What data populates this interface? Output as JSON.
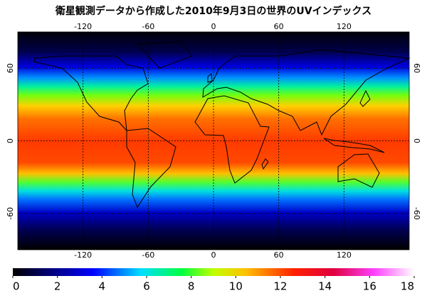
{
  "title": "衛星観測データから作成した2010年9月3日の世界のUVインデックス",
  "map": {
    "lonlim": [
      -180,
      180
    ],
    "latlim": [
      -90,
      90
    ],
    "lon_ticks": [
      -120,
      -60,
      0,
      60,
      120
    ],
    "lat_ticks": [
      60,
      0,
      -60
    ],
    "grid": true
  },
  "colorbar": {
    "lim": [
      0,
      18
    ],
    "ticks": [
      0,
      2,
      4,
      6,
      8,
      10,
      12,
      14,
      16,
      18
    ]
  }
}
